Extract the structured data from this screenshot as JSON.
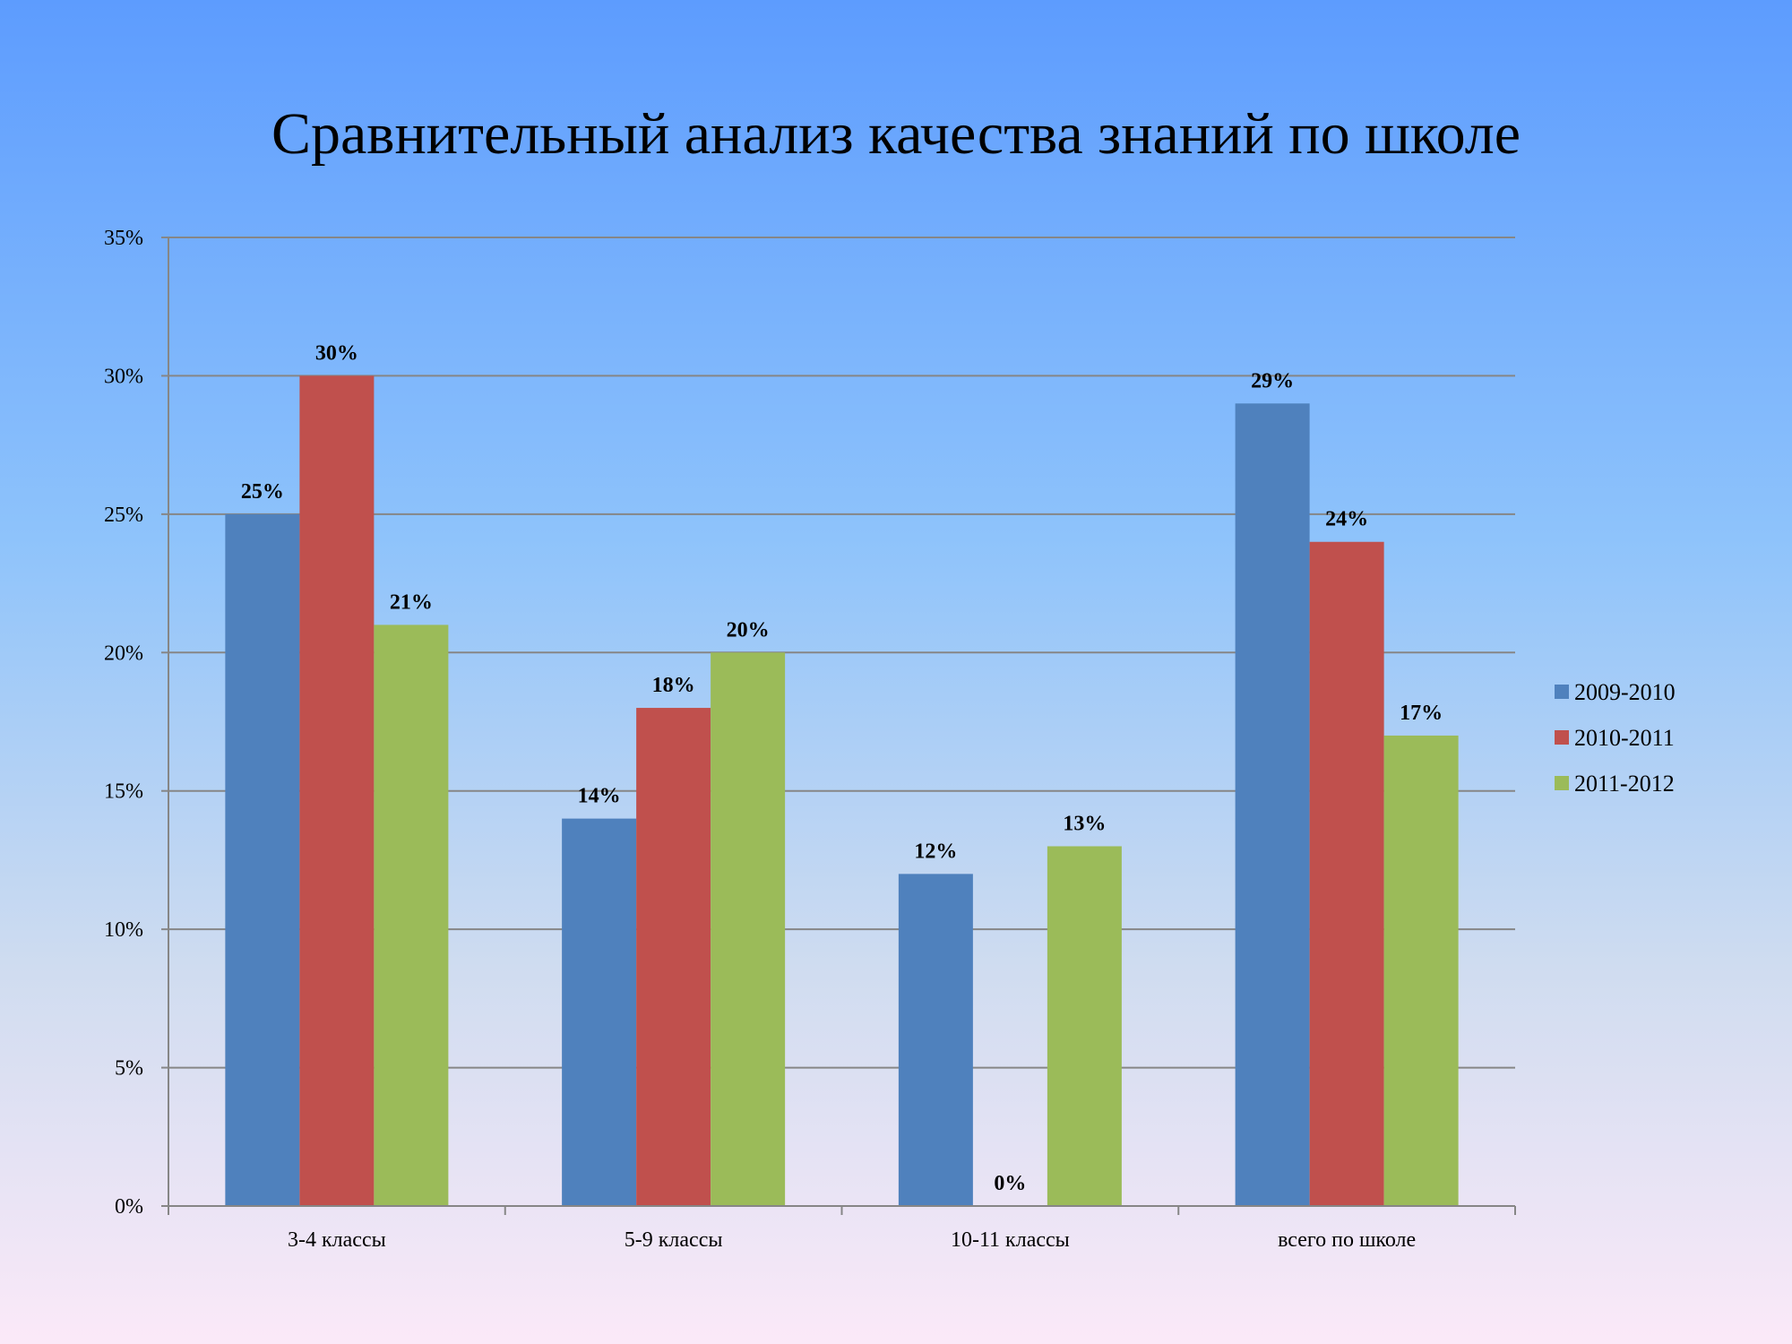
{
  "slide": {
    "title": "Сравнительный анализ качества знаний по школе"
  },
  "chart_data": {
    "type": "bar",
    "title": "Сравнительный анализ качества знаний по школе",
    "xlabel": "",
    "ylabel": "",
    "categories": [
      "3-4 классы",
      "5-9 классы",
      "10-11 классы",
      "всего по школе"
    ],
    "series": [
      {
        "name": "2009-2010",
        "color": "#4f81bd",
        "values": [
          25,
          14,
          12,
          29
        ]
      },
      {
        "name": "2010-2011",
        "color": "#c0504d",
        "values": [
          30,
          18,
          0,
          24
        ]
      },
      {
        "name": "2011-2012",
        "color": "#9bbb59",
        "values": [
          21,
          20,
          13,
          17
        ]
      }
    ],
    "ylim": [
      0,
      35
    ],
    "yticks": [
      0,
      5,
      10,
      15,
      20,
      25,
      30,
      35
    ],
    "y_format": "percent",
    "grid": true,
    "legend_position": "right",
    "data_labels": true
  }
}
